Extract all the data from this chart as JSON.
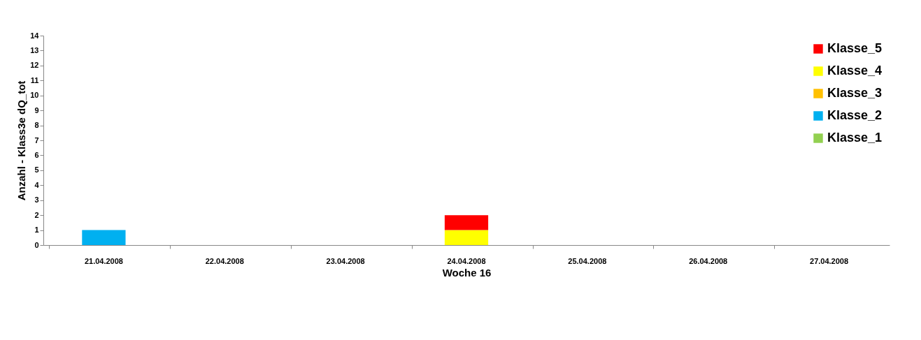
{
  "chart_data": {
    "type": "bar",
    "stacked": true,
    "xlabel": "Woche 16",
    "ylabel": "Anzahl - Klass3e dQ_tot",
    "categories": [
      "21.04.2008",
      "22.04.2008",
      "23.04.2008",
      "24.04.2008",
      "25.04.2008",
      "26.04.2008",
      "27.04.2008"
    ],
    "series": [
      {
        "name": "Klasse_1",
        "color": "#92d050",
        "values": [
          0,
          0,
          0,
          0,
          0,
          0,
          0
        ]
      },
      {
        "name": "Klasse_2",
        "color": "#00b0f0",
        "values": [
          1,
          0,
          0,
          0,
          0,
          0,
          0
        ]
      },
      {
        "name": "Klasse_3",
        "color": "#ffc000",
        "values": [
          0,
          0,
          0,
          0,
          0,
          0,
          0
        ]
      },
      {
        "name": "Klasse_4",
        "color": "#ffff00",
        "values": [
          0,
          0,
          0,
          1,
          0,
          0,
          0
        ]
      },
      {
        "name": "Klasse_5",
        "color": "#ff0000",
        "values": [
          0,
          0,
          0,
          1,
          0,
          0,
          0
        ]
      }
    ],
    "ylim": [
      0,
      14
    ],
    "yticks": [
      0,
      1,
      2,
      3,
      4,
      5,
      6,
      7,
      8,
      9,
      10,
      11,
      12,
      13,
      14
    ],
    "legend": "top right",
    "grid": false
  }
}
